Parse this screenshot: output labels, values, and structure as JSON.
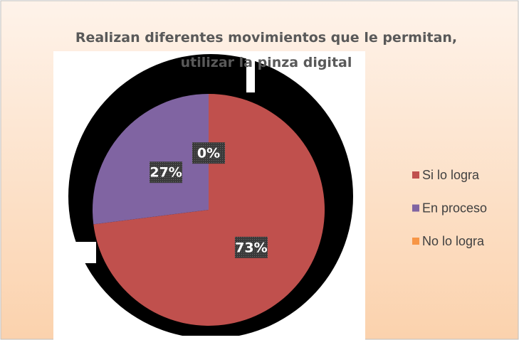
{
  "chart_data": {
    "type": "pie",
    "title": "Realizan diferentes movimientos que le permitan, utilizar la pinza digital",
    "categories": [
      "Si lo logra",
      "En proceso",
      "No lo logra"
    ],
    "values": [
      73,
      27,
      0
    ],
    "value_labels": [
      "73%",
      "27%",
      "0%"
    ],
    "colors": [
      "#c0504d",
      "#8064a2",
      "#f79646"
    ],
    "legend": "right"
  }
}
